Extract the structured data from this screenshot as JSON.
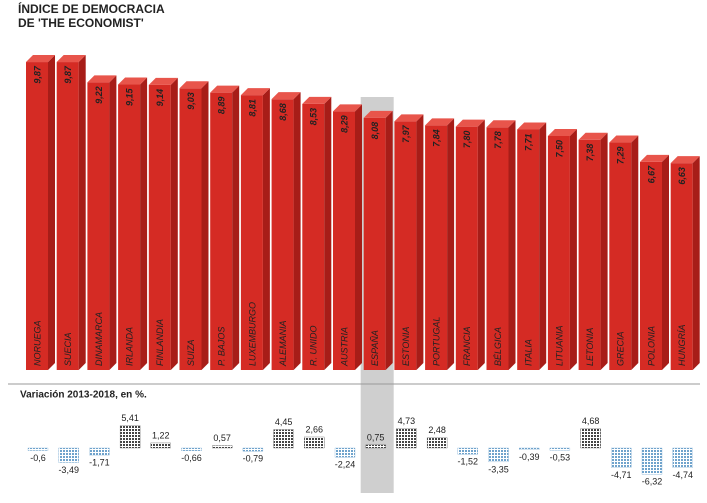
{
  "chart_data": [
    {
      "type": "bar3d",
      "title": "ÍNDICE DE DEMOCRACIA DE 'THE ECONOMIST'",
      "categories": [
        "NORUEGA",
        "SUECIA",
        "DINAMARCA",
        "IRLANDA",
        "FINLANDIA",
        "SUIZA",
        "P. BAJOS",
        "LUXEMBURGO",
        "ALEMANIA",
        "R. UNIDO",
        "AUSTRIA",
        "ESPAÑA",
        "ESTONIA",
        "PORTUGAL",
        "FRANCIA",
        "BÉLGICA",
        "ITALIA",
        "LITUANIA",
        "LETONIA",
        "GRECIA",
        "POLONIA",
        "HUNGRÍA"
      ],
      "values": [
        9.87,
        9.87,
        9.22,
        9.15,
        9.14,
        9.03,
        8.89,
        8.81,
        8.68,
        8.53,
        8.29,
        8.08,
        7.97,
        7.84,
        7.8,
        7.78,
        7.71,
        7.5,
        7.38,
        7.29,
        6.67,
        6.63
      ],
      "value_labels": [
        "9,87",
        "9,87",
        "9,22",
        "9,15",
        "9,14",
        "9,03",
        "8,89",
        "8,81",
        "8,68",
        "8,53",
        "8,29",
        "8,08",
        "7,97",
        "7,84",
        "7,80",
        "7,78",
        "7,71",
        "7,50",
        "7,38",
        "7,29",
        "6,67",
        "6,63"
      ],
      "color": "#d52b24",
      "ylim": [
        0,
        10
      ],
      "highlight": "ESPAÑA"
    },
    {
      "type": "dotbar",
      "subtitle": "Variación 2013-2018, en %.",
      "values": [
        -0.6,
        -3.49,
        -1.71,
        5.41,
        1.22,
        -0.66,
        0.57,
        -0.79,
        4.45,
        2.66,
        -2.24,
        0.75,
        4.73,
        2.48,
        -1.52,
        -3.35,
        -0.39,
        -0.53,
        4.68,
        -4.71,
        -6.32,
        -4.74
      ],
      "value_labels": [
        "-0,6",
        "-3,49",
        "-1,71",
        "5,41",
        "1,22",
        "-0,66",
        "0,57",
        "-0,79",
        "4,45",
        "2,66",
        "-2,24",
        "0,75",
        "4,73",
        "2,48",
        "-1,52",
        "-3,35",
        "-0,39",
        "-0,53",
        "4,68",
        "-4,71",
        "-6,32",
        "-4,74"
      ],
      "ylim": [
        -7,
        7
      ],
      "colors": {
        "positive": "#444",
        "negative": "#6fa3cc"
      }
    }
  ]
}
